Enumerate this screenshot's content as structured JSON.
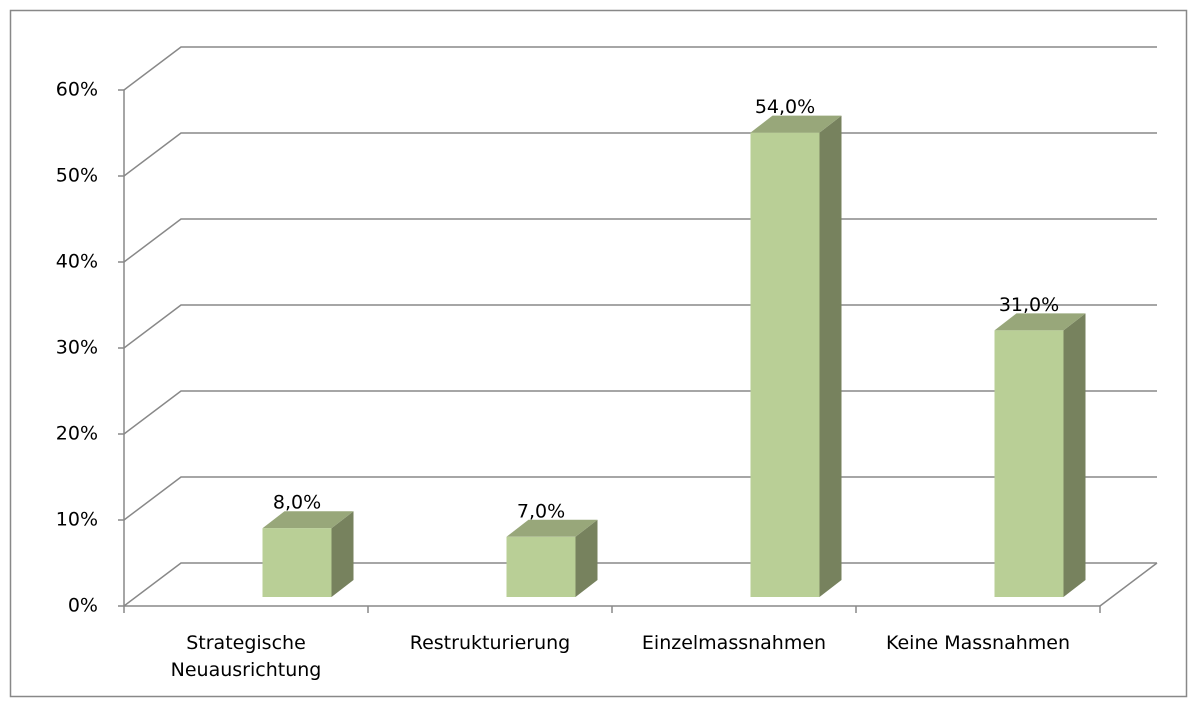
{
  "chart_data": {
    "type": "bar3d",
    "categories": [
      "Strategische Neuausrichtung",
      "Restrukturierung",
      "Einzelmassnahmen",
      "Keine Massnahmen"
    ],
    "values": [
      8,
      7,
      54,
      31
    ],
    "value_labels": [
      "8,0%",
      "7,0%",
      "54,0%",
      "31,0%"
    ],
    "color": "#b9cf96",
    "ylim": [
      0,
      60
    ],
    "yticks": [
      {
        "value": 0,
        "label": "0%"
      },
      {
        "value": 10,
        "label": "10%"
      },
      {
        "value": 20,
        "label": "20%"
      },
      {
        "value": 30,
        "label": "30%"
      },
      {
        "value": 40,
        "label": "40%"
      },
      {
        "value": 50,
        "label": "50%"
      },
      {
        "value": 60,
        "label": "60%"
      }
    ],
    "grid": true
  }
}
